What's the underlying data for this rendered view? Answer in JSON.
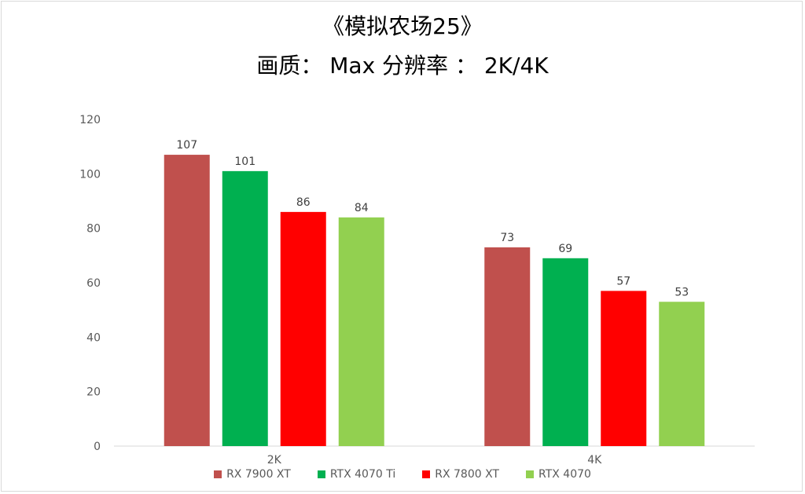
{
  "title_line1": "《模拟农场25》",
  "title_line2": "画质：  Max      分辨率 ：  2K/4K",
  "chart_data": {
    "type": "bar",
    "categories": [
      "2K",
      "4K"
    ],
    "series": [
      {
        "name": "RX 7900 XT",
        "color": "#c0504d",
        "values": [
          107,
          73
        ]
      },
      {
        "name": "RTX 4070 Ti",
        "color": "#00b050",
        "values": [
          101,
          69
        ]
      },
      {
        "name": "RX 7800 XT",
        "color": "#ff0000",
        "values": [
          86,
          57
        ]
      },
      {
        "name": "RTX 4070",
        "color": "#92d050",
        "values": [
          84,
          53
        ]
      }
    ],
    "ylim": [
      0,
      120
    ],
    "yticks": [
      0,
      20,
      40,
      60,
      80,
      100,
      120
    ],
    "grid": false,
    "legend": "bottom"
  }
}
